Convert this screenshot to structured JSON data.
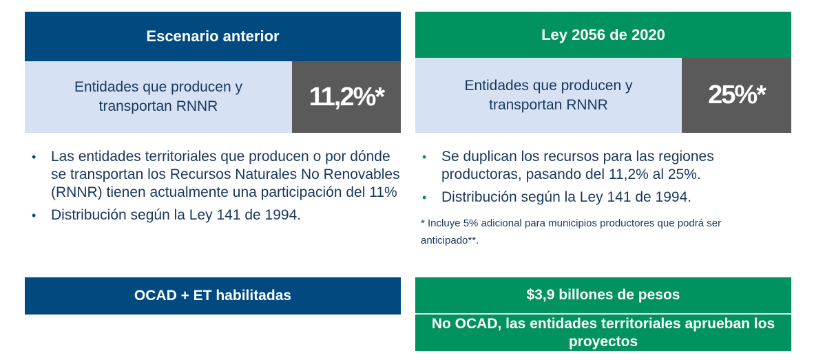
{
  "left": {
    "header": "Escenario anterior",
    "box_text": "Entidades que producen y transportan RNNR",
    "percent": "11,2%*",
    "bullets": [
      "Las entidades territoriales que producen o por dónde se transportan los Recursos Naturales No Renovables (RNNR) tienen actualmente una participación del 11%",
      "Distribución según la Ley 141 de 1994."
    ],
    "footer": "OCAD + ET habilitadas"
  },
  "right": {
    "header": "Ley 2056 de 2020",
    "box_text": "Entidades que producen y transportan RNNR",
    "percent": "25%*",
    "bullets": [
      "Se duplican los recursos para las regiones productoras, pasando del 11,2% al 25%.",
      "Distribución según la Ley 141 de 1994."
    ],
    "note": "* Incluye 5% adicional para municipios productores que podrá ser anticipado**.",
    "footer_top": "$3,9 billones de pesos",
    "footer_bottom": "No OCAD, las entidades territoriales aprueban los proyectos"
  },
  "colors": {
    "blue": "#004a80",
    "green": "#00935f",
    "light": "#d6e2f3",
    "gray": "#5a5a5a",
    "text": "#17375e"
  }
}
